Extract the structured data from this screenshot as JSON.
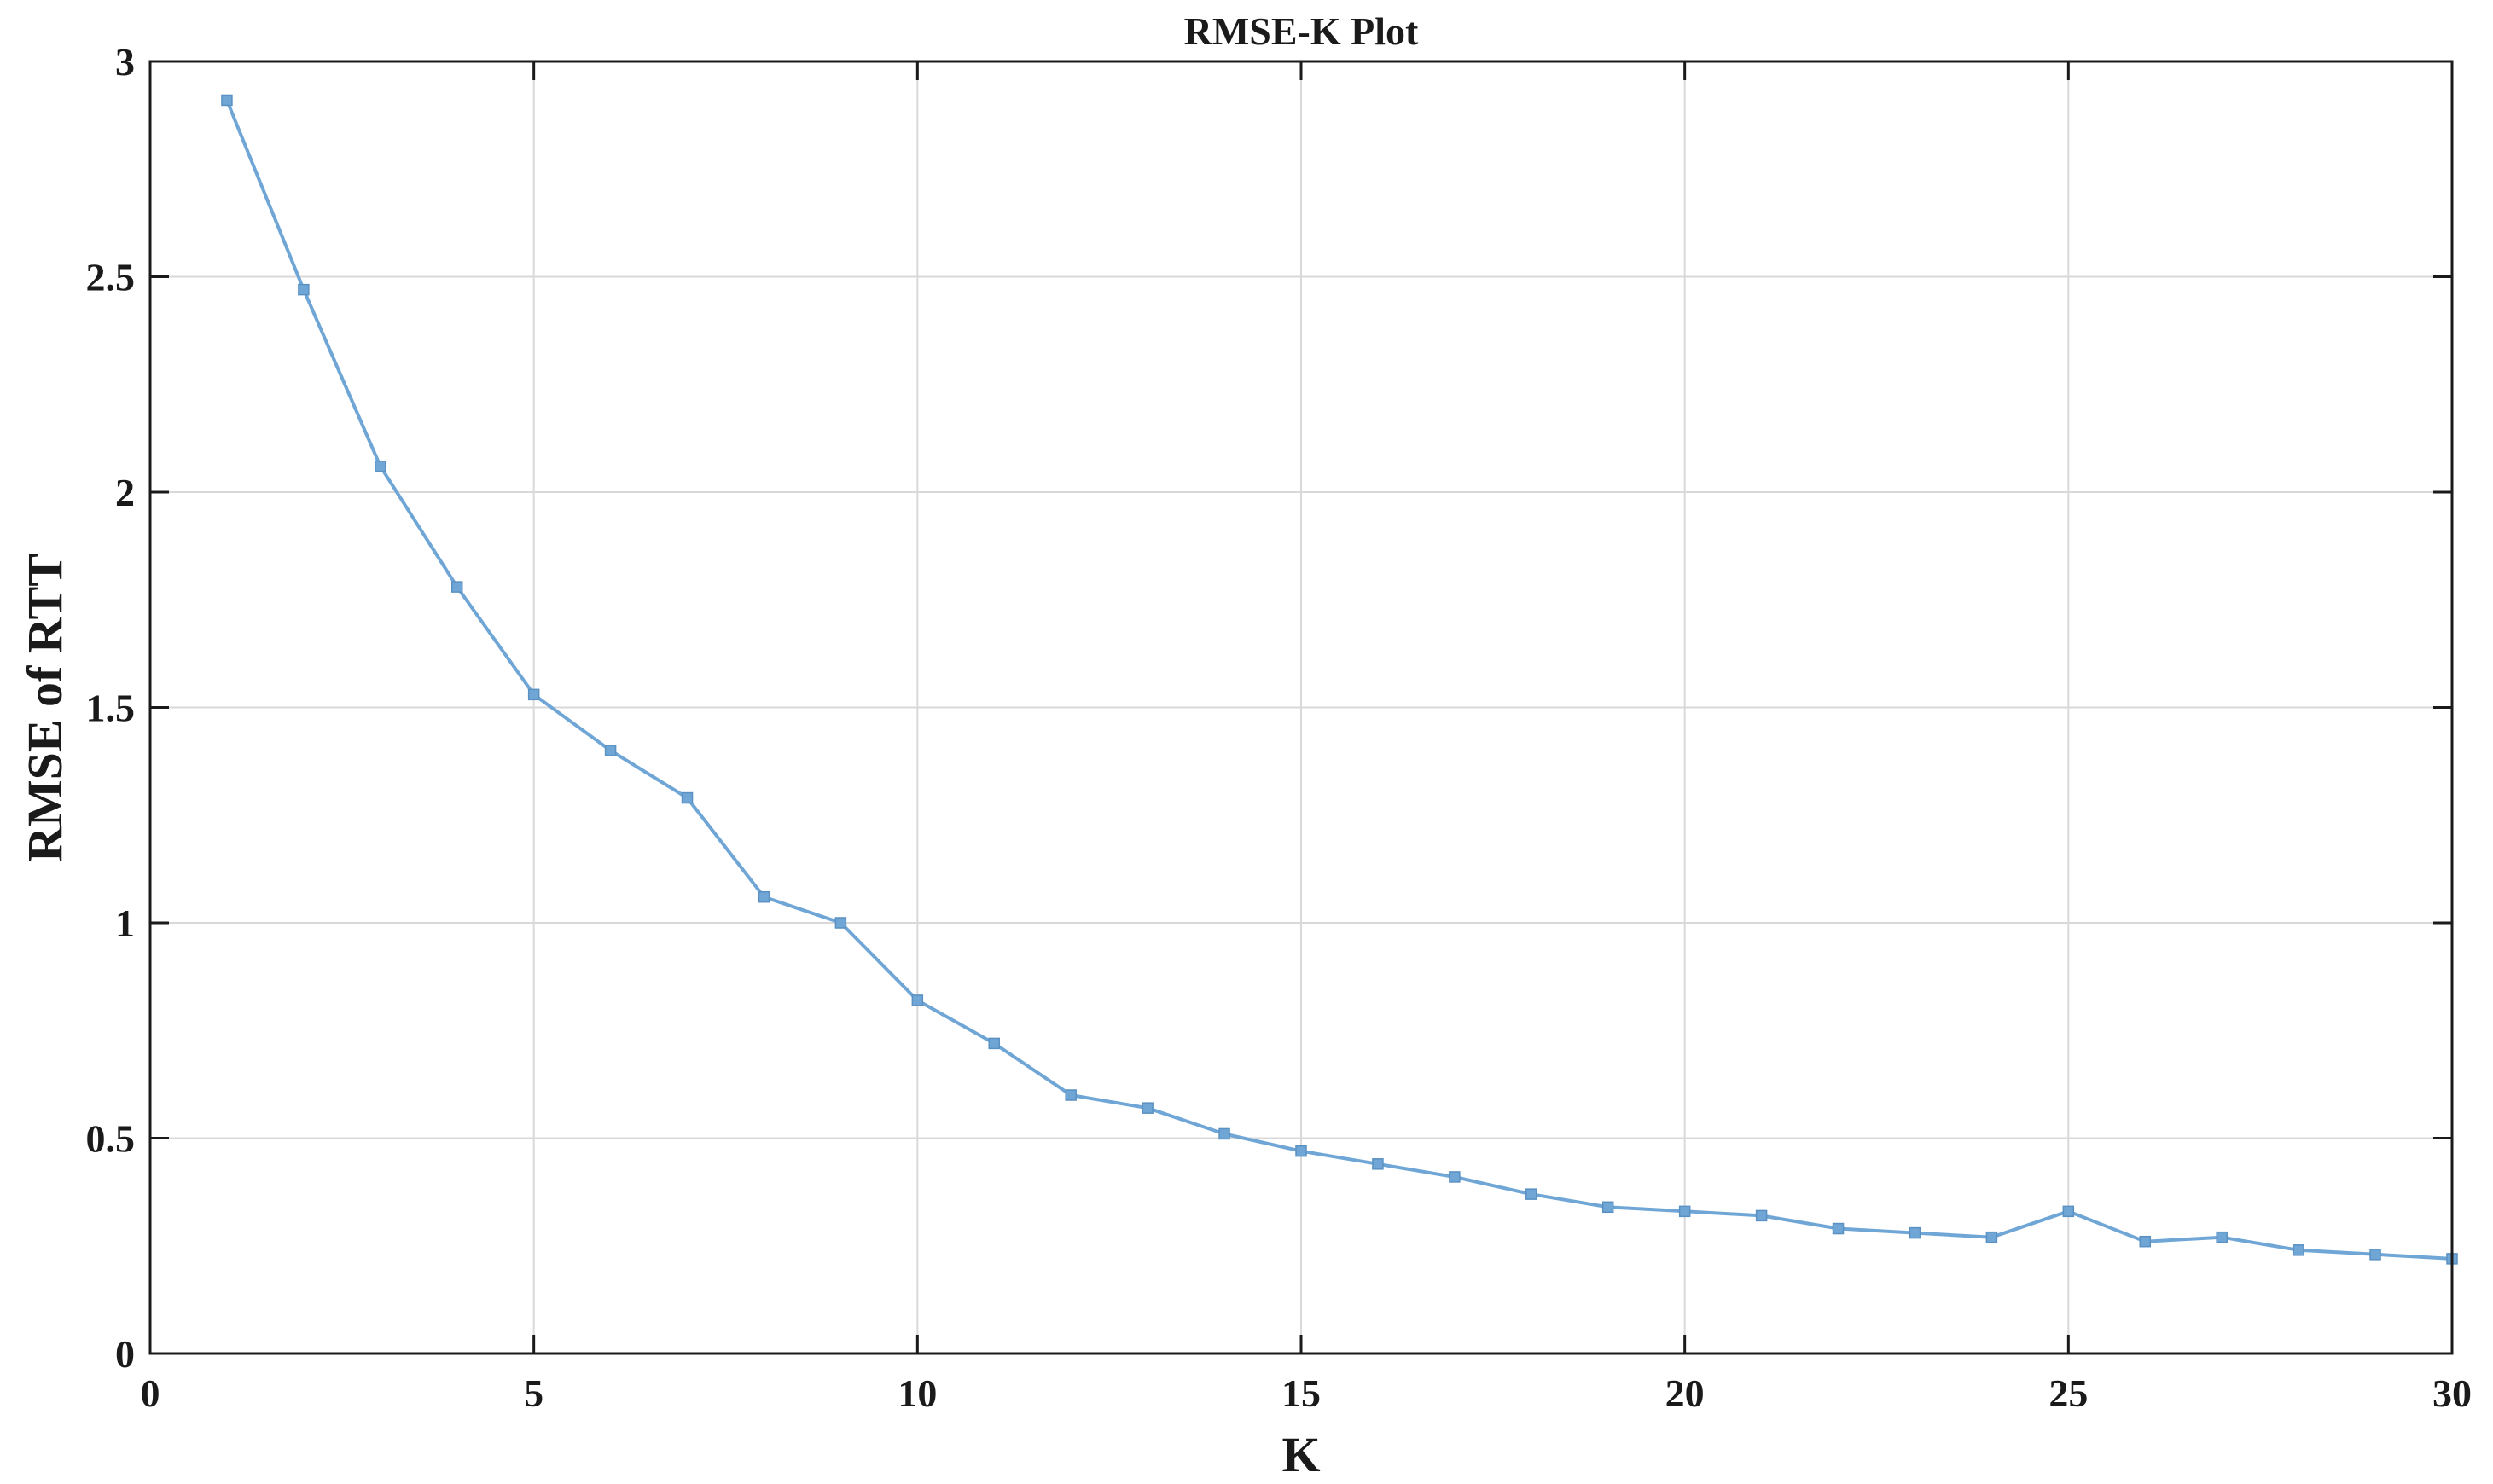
{
  "chart_data": {
    "type": "line",
    "title": "RMSE-K Plot",
    "xlabel": "K",
    "ylabel": "RMSE of RTT",
    "xlim": [
      0,
      30
    ],
    "ylim": [
      0,
      3
    ],
    "xticks": [
      0,
      5,
      10,
      15,
      20,
      25,
      30
    ],
    "yticks": [
      0,
      0.5,
      1,
      1.5,
      2,
      2.5,
      3
    ],
    "xtick_labels": [
      "0",
      "5",
      "10",
      "15",
      "20",
      "25",
      "30"
    ],
    "ytick_labels": [
      "0",
      "0.5",
      "1",
      "1.5",
      "2",
      "2.5",
      "3"
    ],
    "grid": true,
    "legend": "none",
    "series": [
      {
        "color": "#6fa6d6",
        "marker": "square",
        "x": [
          1,
          2,
          3,
          4,
          5,
          6,
          7,
          8,
          9,
          10,
          11,
          12,
          13,
          14,
          15,
          16,
          17,
          18,
          19,
          20,
          21,
          22,
          23,
          24,
          25,
          26,
          27,
          28,
          29,
          30
        ],
        "y": [
          2.91,
          2.47,
          2.06,
          1.78,
          1.53,
          1.4,
          1.29,
          1.06,
          1.0,
          0.82,
          0.72,
          0.6,
          0.57,
          0.51,
          0.47,
          0.44,
          0.41,
          0.37,
          0.34,
          0.33,
          0.32,
          0.29,
          0.28,
          0.27,
          0.33,
          0.26,
          0.27,
          0.24,
          0.23,
          0.22
        ]
      }
    ]
  }
}
